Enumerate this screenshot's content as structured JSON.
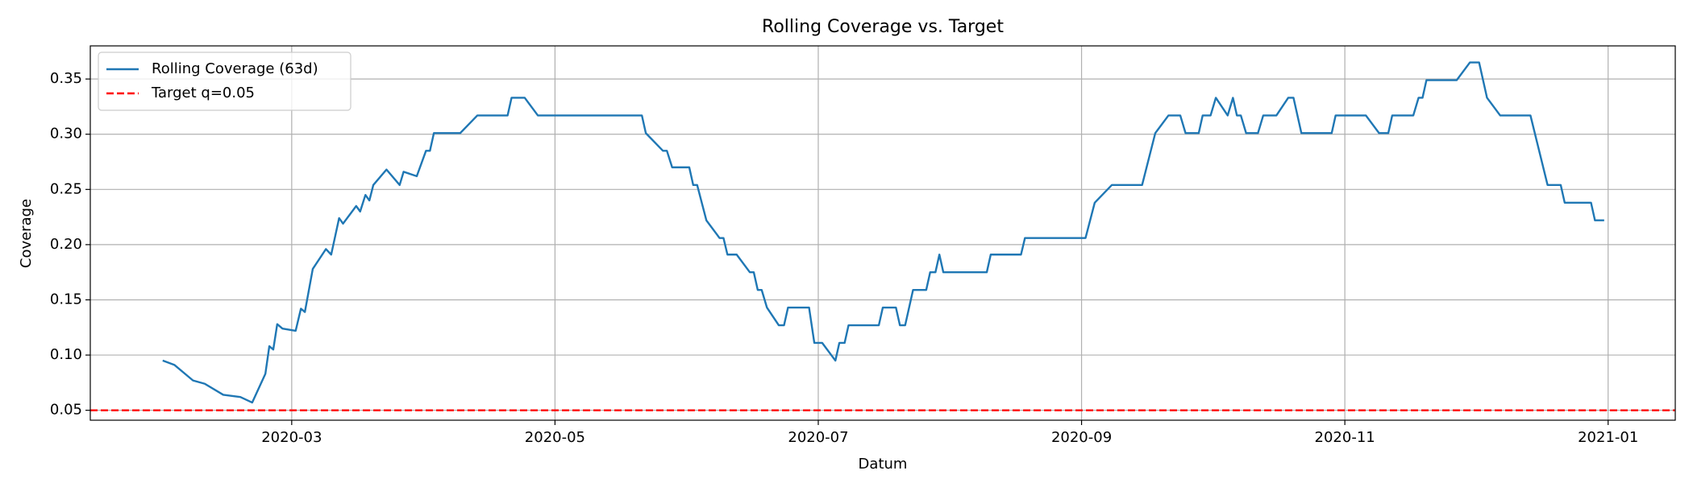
{
  "chart_data": {
    "type": "line",
    "title": "Rolling Coverage vs. Target",
    "x_label": "Datum",
    "y_label": "Coverage",
    "series": [
      {
        "name": "Rolling Coverage (63d)",
        "color": "#1f77b4",
        "x": [
          2.02,
          2.11,
          2.25,
          2.34,
          2.48,
          2.61,
          2.7,
          2.8,
          2.83,
          2.86,
          2.89,
          2.93,
          3.03,
          3.07,
          3.1,
          3.16,
          3.26,
          3.3,
          3.36,
          3.39,
          3.49,
          3.52,
          3.56,
          3.59,
          3.62,
          3.72,
          3.82,
          3.85,
          3.95,
          4.02,
          4.05,
          4.08,
          4.28,
          4.41,
          4.64,
          4.67,
          4.77,
          4.87,
          5.66,
          5.69,
          5.82,
          5.85,
          5.89,
          6.02,
          6.05,
          6.08,
          6.15,
          6.25,
          6.28,
          6.31,
          6.38,
          6.48,
          6.51,
          6.54,
          6.57,
          6.61,
          6.7,
          6.74,
          6.77,
          6.93,
          6.97,
          7.03,
          7.13,
          7.16,
          7.2,
          7.23,
          7.46,
          7.49,
          7.59,
          7.62,
          7.66,
          7.72,
          7.82,
          7.85,
          7.89,
          7.92,
          7.95,
          8.28,
          8.31,
          8.54,
          8.57,
          9.03,
          9.1,
          9.23,
          9.46,
          9.56,
          9.66,
          9.75,
          9.79,
          9.89,
          9.92,
          9.98,
          10.02,
          10.11,
          10.15,
          10.18,
          10.21,
          10.25,
          10.34,
          10.38,
          10.48,
          10.57,
          10.61,
          10.67,
          10.9,
          10.93,
          11.16,
          11.26,
          11.33,
          11.36,
          11.52,
          11.56,
          11.59,
          11.62,
          11.85,
          11.95,
          12.02,
          12.08,
          12.18,
          12.41,
          12.54,
          12.64,
          12.67,
          12.87,
          12.9,
          12.97
        ],
        "values": [
          0.095,
          0.091,
          0.077,
          0.074,
          0.064,
          0.062,
          0.057,
          0.083,
          0.108,
          0.105,
          0.128,
          0.124,
          0.122,
          0.142,
          0.139,
          0.178,
          0.196,
          0.191,
          0.224,
          0.219,
          0.235,
          0.23,
          0.245,
          0.24,
          0.254,
          0.268,
          0.254,
          0.266,
          0.262,
          0.285,
          0.285,
          0.301,
          0.301,
          0.317,
          0.317,
          0.333,
          0.333,
          0.317,
          0.317,
          0.301,
          0.285,
          0.285,
          0.27,
          0.27,
          0.254,
          0.254,
          0.222,
          0.206,
          0.206,
          0.191,
          0.191,
          0.175,
          0.175,
          0.159,
          0.159,
          0.143,
          0.127,
          0.127,
          0.143,
          0.143,
          0.111,
          0.111,
          0.095,
          0.111,
          0.111,
          0.127,
          0.127,
          0.143,
          0.143,
          0.127,
          0.127,
          0.159,
          0.159,
          0.175,
          0.175,
          0.191,
          0.175,
          0.175,
          0.191,
          0.191,
          0.206,
          0.206,
          0.238,
          0.254,
          0.254,
          0.301,
          0.317,
          0.317,
          0.301,
          0.301,
          0.317,
          0.317,
          0.333,
          0.317,
          0.333,
          0.317,
          0.317,
          0.301,
          0.301,
          0.317,
          0.317,
          0.333,
          0.333,
          0.301,
          0.301,
          0.317,
          0.317,
          0.301,
          0.301,
          0.317,
          0.317,
          0.333,
          0.333,
          0.349,
          0.349,
          0.365,
          0.365,
          0.333,
          0.317,
          0.317,
          0.254,
          0.254,
          0.238,
          0.238,
          0.222,
          0.222
        ]
      }
    ],
    "reference_lines": [
      {
        "name": "Target q=0.05",
        "value": 0.05,
        "color": "#ff0000",
        "style": "dashed"
      }
    ],
    "xlim": [
      1.47,
      13.51
    ],
    "xticks": [
      {
        "value": 3,
        "label": "2020-03"
      },
      {
        "value": 5,
        "label": "2020-05"
      },
      {
        "value": 7,
        "label": "2020-07"
      },
      {
        "value": 9,
        "label": "2020-09"
      },
      {
        "value": 11,
        "label": "2020-11"
      },
      {
        "value": 13,
        "label": "2021-01"
      }
    ],
    "ylim": [
      0.041,
      0.38
    ],
    "yticks": [
      0.05,
      {
        "value": 0.1,
        "label": "0.10"
      },
      0.15,
      {
        "value": 0.2,
        "label": "0.20"
      },
      0.25,
      {
        "value": 0.3,
        "label": "0.30"
      },
      0.35
    ],
    "grid": true,
    "legend": "upper left"
  }
}
